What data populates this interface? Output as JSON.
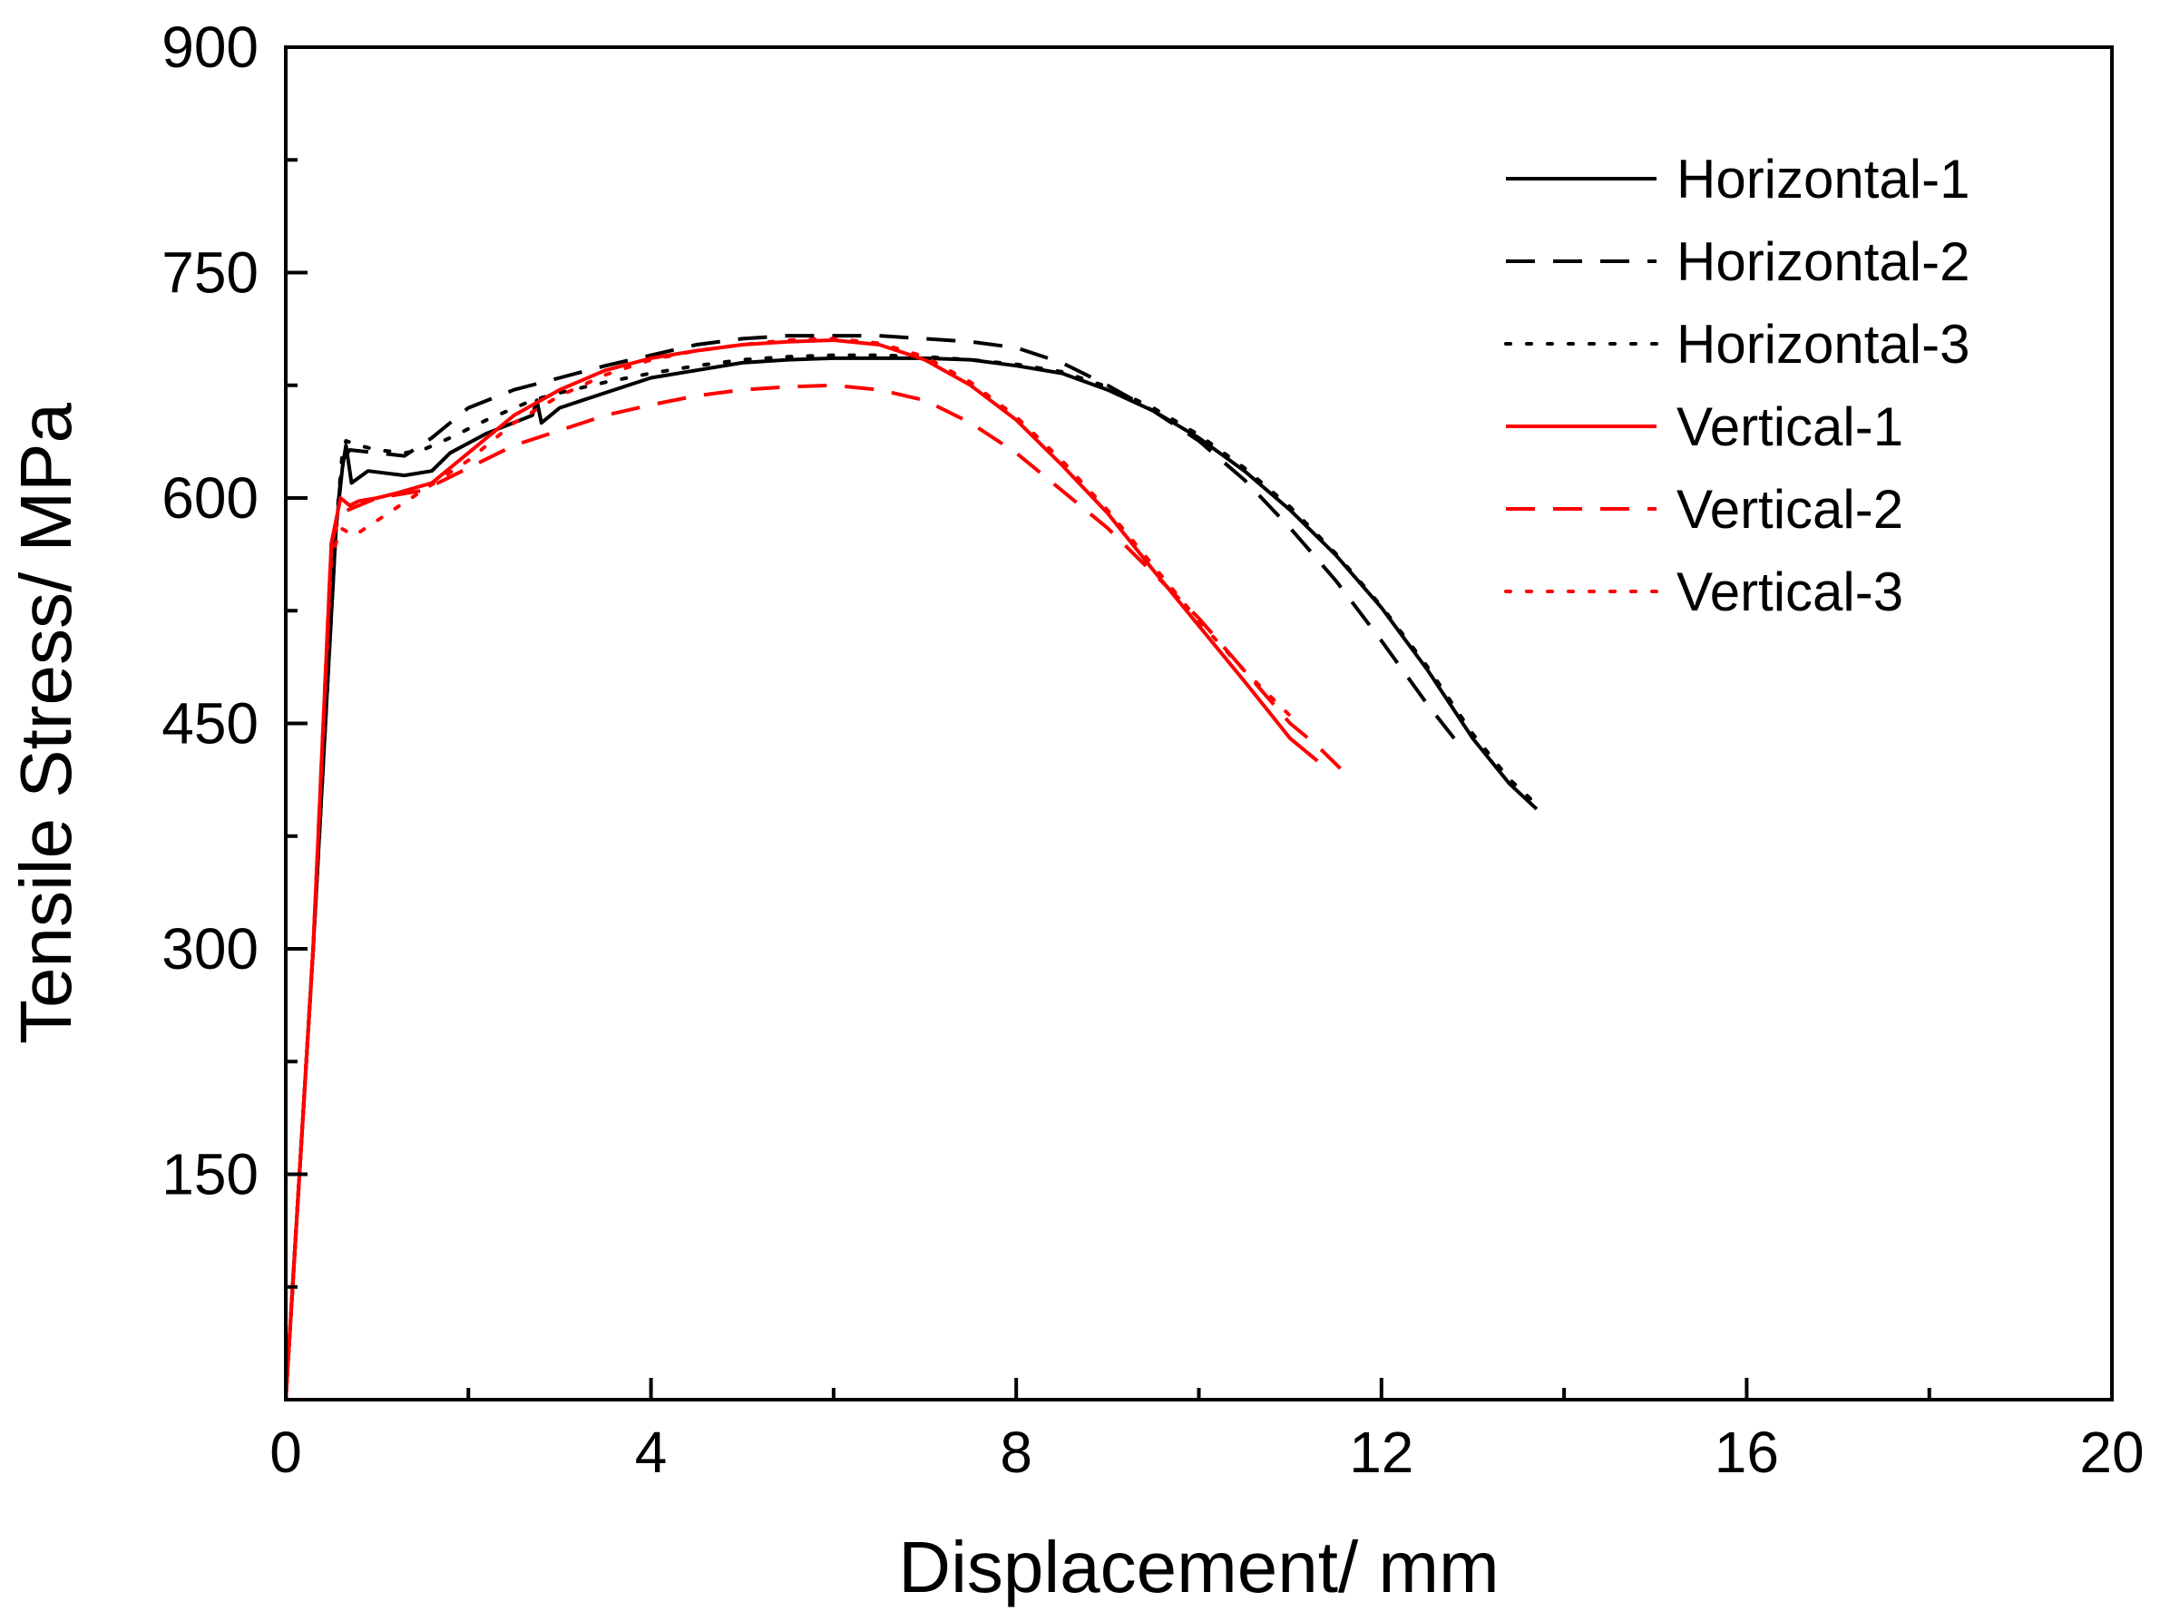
{
  "chart_data": {
    "type": "line",
    "title": "",
    "xlabel": "Displacement/ mm",
    "ylabel": "Tensile Stress/ MPa",
    "xlim": [
      0,
      20
    ],
    "ylim": [
      0,
      900
    ],
    "xticks": [
      0,
      4,
      8,
      12,
      16,
      20
    ],
    "xticks_labels": [
      "0",
      "4",
      "8",
      "12",
      "16",
      "20"
    ],
    "yticks": [
      150,
      300,
      450,
      600,
      750,
      900
    ],
    "yticks_labels": [
      "150",
      "300",
      "450",
      "600",
      "750",
      "900"
    ],
    "x_minor_step": 2,
    "y_minor_step": 75,
    "grid": false,
    "legend_position": "top-right",
    "series": [
      {
        "name": "Horizontal-1",
        "color": "#000000",
        "dash": "solid",
        "x": [
          0,
          0.3,
          0.55,
          0.62,
          0.66,
          0.72,
          0.9,
          1.3,
          1.6,
          1.8,
          2.2,
          2.7,
          2.75,
          2.8,
          3.0,
          3.5,
          4.0,
          4.5,
          5.0,
          5.5,
          6.0,
          6.5,
          7.0,
          7.5,
          8.0,
          8.5,
          9.0,
          9.5,
          10.0,
          10.5,
          11.0,
          11.5,
          12.0,
          12.5,
          13.0,
          13.4,
          13.7
        ],
        "y": [
          0,
          300,
          580,
          620,
          635,
          610,
          618,
          615,
          618,
          630,
          643,
          655,
          665,
          650,
          660,
          670,
          680,
          685,
          690,
          692,
          693,
          693,
          693,
          692,
          688,
          683,
          672,
          658,
          640,
          618,
          592,
          562,
          527,
          486,
          440,
          410,
          393
        ]
      },
      {
        "name": "Horizontal-2",
        "color": "#000000",
        "dash": "dashed",
        "x": [
          0,
          0.3,
          0.55,
          0.62,
          0.7,
          1.0,
          1.3,
          1.6,
          2.0,
          2.5,
          3.0,
          3.5,
          4.0,
          4.5,
          5.0,
          5.5,
          6.0,
          6.5,
          7.0,
          7.5,
          8.0,
          8.5,
          9.0,
          9.5,
          10.0,
          10.5,
          11.0,
          11.5,
          12.0,
          12.5,
          12.9
        ],
        "y": [
          0,
          300,
          580,
          625,
          632,
          630,
          628,
          640,
          660,
          672,
          680,
          688,
          695,
          702,
          706,
          708,
          708,
          708,
          706,
          704,
          700,
          690,
          675,
          658,
          638,
          612,
          580,
          545,
          505,
          463,
          432
        ]
      },
      {
        "name": "Horizontal-3",
        "color": "#000000",
        "dash": "dotted",
        "x": [
          0,
          0.3,
          0.55,
          0.62,
          0.66,
          0.8,
          1.0,
          1.3,
          1.5,
          1.8,
          2.2,
          2.7,
          3.0,
          3.5,
          4.0,
          4.5,
          5.0,
          5.5,
          6.0,
          6.5,
          7.0,
          7.5,
          8.0,
          8.5,
          9.0,
          9.5,
          10.0,
          10.5,
          11.0,
          11.5,
          12.0,
          12.5,
          13.0,
          13.4,
          13.7
        ],
        "y": [
          0,
          300,
          580,
          630,
          638,
          635,
          632,
          630,
          632,
          640,
          652,
          665,
          670,
          677,
          683,
          688,
          692,
          694,
          695,
          695,
          694,
          692,
          689,
          684,
          674,
          660,
          642,
          620,
          594,
          563,
          528,
          488,
          443,
          413,
          396
        ]
      },
      {
        "name": "Vertical-1",
        "color": "#ff0000",
        "dash": "solid",
        "x": [
          0,
          0.3,
          0.5,
          0.6,
          0.7,
          0.8,
          1.0,
          1.2,
          1.6,
          2.0,
          2.5,
          3.0,
          3.5,
          4.0,
          4.5,
          5.0,
          5.5,
          6.0,
          6.5,
          7.0,
          7.5,
          8.0,
          8.5,
          9.0,
          9.5,
          10.0,
          10.5,
          11.0,
          11.3
        ],
        "y": [
          0,
          300,
          570,
          600,
          595,
          598,
          600,
          603,
          610,
          630,
          655,
          672,
          685,
          693,
          698,
          702,
          704,
          705,
          702,
          692,
          675,
          652,
          622,
          590,
          552,
          515,
          478,
          440,
          425
        ]
      },
      {
        "name": "Vertical-2",
        "color": "#ff0000",
        "dash": "dashed",
        "x": [
          0,
          0.3,
          0.5,
          0.6,
          0.8,
          1.0,
          1.5,
          2.0,
          2.5,
          3.0,
          3.5,
          4.0,
          4.5,
          5.0,
          5.5,
          6.0,
          6.5,
          7.0,
          7.5,
          8.0,
          8.5,
          9.0,
          9.5,
          10.0,
          10.5,
          11.0,
          11.3,
          11.55
        ],
        "y": [
          0,
          300,
          570,
          590,
          595,
          600,
          605,
          620,
          635,
          645,
          655,
          662,
          668,
          672,
          674,
          675,
          672,
          665,
          650,
          630,
          605,
          580,
          550,
          520,
          485,
          450,
          435,
          420
        ]
      },
      {
        "name": "Vertical-3",
        "color": "#ff0000",
        "dash": "dotted",
        "x": [
          0,
          0.3,
          0.5,
          0.6,
          0.75,
          1.0,
          1.5,
          2.0,
          2.5,
          3.0,
          3.5,
          4.0,
          4.5,
          5.0,
          5.5,
          6.0,
          6.5,
          7.0,
          7.5,
          8.0,
          8.5,
          9.0,
          9.5,
          10.0,
          10.5,
          11.0
        ],
        "y": [
          0,
          300,
          560,
          580,
          575,
          585,
          605,
          625,
          650,
          668,
          682,
          692,
          698,
          702,
          705,
          706,
          703,
          694,
          677,
          654,
          625,
          592,
          555,
          518,
          485,
          455
        ]
      }
    ]
  }
}
